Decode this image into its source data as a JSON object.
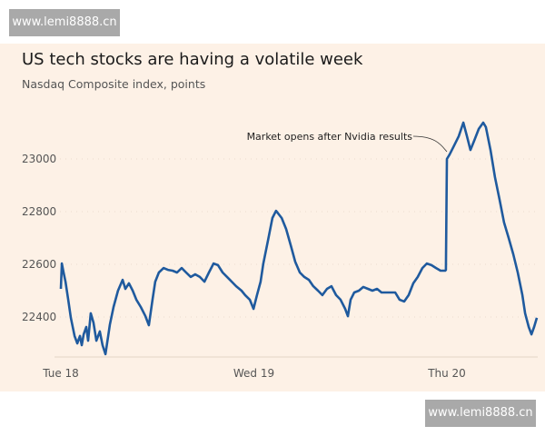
{
  "watermark": {
    "top": "www.lemi8888.cn",
    "bottom": "www.lemi8888.cn"
  },
  "chart_data": {
    "type": "line",
    "title": "US tech stocks are having a volatile week",
    "subtitle": "Nasdaq Composite index, points",
    "xlabel": "",
    "ylabel": "",
    "x_ticks": [
      {
        "x": 0,
        "label": "Tue 18"
      },
      {
        "x": 1,
        "label": "Wed 19"
      },
      {
        "x": 2,
        "label": "Thu 20"
      }
    ],
    "y_ticks": [
      22400,
      22600,
      22800,
      23000
    ],
    "xlim": [
      0,
      2.47
    ],
    "ylim": [
      22250,
      23200
    ],
    "grid": true,
    "color": "#1f5a9e",
    "annotation": {
      "text": "Market opens after Nvidia results",
      "x": 2.0,
      "y": 23000
    },
    "series": [
      {
        "name": "Nasdaq Composite",
        "x": [
          0,
          0.005,
          0.014,
          0.024,
          0.038,
          0.052,
          0.071,
          0.085,
          0.099,
          0.108,
          0.118,
          0.132,
          0.141,
          0.155,
          0.169,
          0.184,
          0.202,
          0.216,
          0.231,
          0.245,
          0.254,
          0.273,
          0.296,
          0.32,
          0.334,
          0.353,
          0.372,
          0.391,
          0.414,
          0.438,
          0.456,
          0.475,
          0.489,
          0.508,
          0.532,
          0.555,
          0.579,
          0.602,
          0.626,
          0.649,
          0.673,
          0.696,
          0.72,
          0.744,
          0.767,
          0.791,
          0.814,
          0.838,
          0.861,
          0.885,
          0.908,
          0.936,
          0.955,
          0.979,
          0.998,
          1.016,
          1.035,
          1.049,
          1.073,
          1.096,
          1.115,
          1.144,
          1.167,
          1.191,
          1.214,
          1.238,
          1.261,
          1.285,
          1.308,
          1.332,
          1.355,
          1.379,
          1.402,
          1.426,
          1.449,
          1.473,
          1.487,
          1.501,
          1.52,
          1.544,
          1.567,
          1.591,
          1.614,
          1.638,
          1.661,
          1.685,
          1.708,
          1.732,
          1.755,
          1.779,
          1.802,
          1.826,
          1.849,
          1.873,
          1.896,
          1.92,
          1.944,
          1.967,
          1.991,
          1.995,
          2.0,
          2.014,
          2.038,
          2.061,
          2.085,
          2.104,
          2.122,
          2.141,
          2.165,
          2.188,
          2.202,
          2.226,
          2.249,
          2.273,
          2.296,
          2.32,
          2.344,
          2.367,
          2.391,
          2.405,
          2.424,
          2.438,
          2.452,
          2.466
        ],
        "y": [
          22507,
          22603,
          22569,
          22534,
          22466,
          22397,
          22328,
          22300,
          22328,
          22293,
          22334,
          22362,
          22310,
          22414,
          22379,
          22310,
          22345,
          22293,
          22259,
          22328,
          22372,
          22438,
          22500,
          22541,
          22507,
          22528,
          22500,
          22466,
          22438,
          22403,
          22369,
          22466,
          22534,
          22569,
          22586,
          22579,
          22576,
          22569,
          22586,
          22569,
          22552,
          22562,
          22552,
          22534,
          22569,
          22603,
          22597,
          22569,
          22552,
          22534,
          22517,
          22500,
          22483,
          22466,
          22431,
          22483,
          22534,
          22603,
          22690,
          22776,
          22803,
          22776,
          22734,
          22672,
          22610,
          22569,
          22552,
          22541,
          22517,
          22500,
          22483,
          22507,
          22517,
          22483,
          22466,
          22431,
          22403,
          22466,
          22493,
          22500,
          22514,
          22507,
          22500,
          22507,
          22493,
          22493,
          22493,
          22493,
          22466,
          22459,
          22483,
          22528,
          22552,
          22586,
          22603,
          22597,
          22586,
          22576,
          22576,
          22579,
          23000,
          23017,
          23052,
          23086,
          23138,
          23086,
          23034,
          23069,
          23114,
          23138,
          23121,
          23034,
          22931,
          22845,
          22759,
          22700,
          22638,
          22569,
          22483,
          22414,
          22362,
          22334,
          22362,
          22397
        ]
      }
    ]
  }
}
